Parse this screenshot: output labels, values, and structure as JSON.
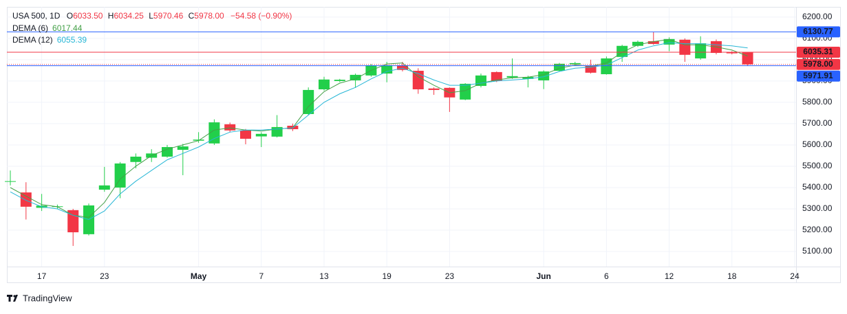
{
  "header": {
    "symbol": "USA 500, 1D",
    "open_key": "O",
    "open": "6033.50",
    "high_key": "H",
    "high": "6034.25",
    "low_key": "L",
    "low": "5970.46",
    "close_key": "C",
    "close": "5978.00",
    "change": "−54.58 (−0.90%)"
  },
  "brand": "TradingView",
  "chart_data": {
    "type": "candlestick",
    "up_color": "#22cf4a",
    "down_color": "#f23645",
    "open": [
      5430,
      5377,
      5305,
      5310,
      5294,
      5181,
      5390,
      5400,
      5520,
      5540,
      5545,
      5577,
      5620,
      5607,
      5697,
      5668,
      5640,
      5639,
      5690,
      5745,
      5861,
      5900,
      5903,
      5926,
      5935,
      5974,
      5948,
      5865,
      5868,
      5813,
      5877,
      5942,
      5916,
      5910,
      5903,
      5948,
      5978,
      5971,
      5932,
      6013,
      6065,
      6087,
      6071,
      6094,
      6006,
      6087,
      6036,
      6033.5
    ],
    "high": [
      5480,
      5425,
      5370,
      5320,
      5300,
      5325,
      5497,
      5520,
      5560,
      5580,
      5600,
      5605,
      5660,
      5720,
      5705,
      5675,
      5660,
      5740,
      5700,
      5870,
      5920,
      5910,
      5935,
      5980,
      5990,
      5990,
      5960,
      5870,
      5870,
      5890,
      5935,
      5945,
      6006,
      5925,
      5950,
      5985,
      5990,
      6000,
      6015,
      6070,
      6090,
      6129,
      6105,
      6100,
      6110,
      6095,
      6040,
      6034.25
    ],
    "low": [
      5410,
      5250,
      5290,
      5300,
      5126,
      5175,
      5380,
      5350,
      5490,
      5520,
      5540,
      5458,
      5610,
      5600,
      5660,
      5603,
      5590,
      5635,
      5665,
      5740,
      5855,
      5895,
      5868,
      5920,
      5894,
      5945,
      5840,
      5835,
      5755,
      5810,
      5870,
      5895,
      5910,
      5870,
      5862,
      5945,
      5975,
      5935,
      5930,
      5990,
      6060,
      6070,
      6040,
      5990,
      6000,
      6025,
      6025,
      5970.46
    ],
    "close": [
      5430,
      5310,
      5315,
      5312,
      5190,
      5316,
      5410,
      5513,
      5545,
      5560,
      5590,
      5593,
      5625,
      5706,
      5668,
      5629,
      5652,
      5684,
      5674,
      5858,
      5907,
      5906,
      5929,
      5974,
      5974,
      5952,
      5861,
      5858,
      5823,
      5887,
      5926,
      5900,
      5923,
      5919,
      5945,
      5981,
      5984,
      5939,
      6006,
      6065,
      6084,
      6074,
      6097,
      6023,
      6077,
      6032,
      6030,
      5978
    ],
    "series": [
      {
        "name": "DEMA (6)",
        "color": "#43a047",
        "values": [
          5400,
          5360,
          5320,
          5310,
          5270,
          5260,
          5330,
          5440,
          5500,
          5550,
          5580,
          5600,
          5620,
          5670,
          5680,
          5670,
          5665,
          5675,
          5680,
          5780,
          5850,
          5890,
          5910,
          5950,
          5980,
          5985,
          5920,
          5880,
          5845,
          5855,
          5890,
          5905,
          5915,
          5918,
          5930,
          5960,
          5975,
          5970,
          5985,
          6035,
          6070,
          6085,
          6095,
          6070,
          6070,
          6060,
          6045,
          6017.44
        ]
      },
      {
        "name": "DEMA (12)",
        "color": "#26b6d6",
        "values": [
          5380,
          5340,
          5310,
          5300,
          5270,
          5250,
          5290,
          5370,
          5430,
          5480,
          5530,
          5560,
          5590,
          5630,
          5660,
          5670,
          5670,
          5675,
          5680,
          5740,
          5800,
          5840,
          5870,
          5910,
          5945,
          5960,
          5935,
          5905,
          5880,
          5880,
          5890,
          5900,
          5905,
          5910,
          5920,
          5945,
          5960,
          5965,
          5975,
          6010,
          6045,
          6065,
          6080,
          6075,
          6075,
          6070,
          6065,
          6055.39
        ]
      }
    ],
    "price_lines": [
      {
        "value": 6130.77,
        "label": "6130.77",
        "color": "#2962ff",
        "style": "solid"
      },
      {
        "value": 6035.31,
        "label": "6035.31",
        "color": "#f23645",
        "style": "solid"
      },
      {
        "value": 5978.0,
        "label": "5978.00",
        "color": "#f23645",
        "style": "dotted"
      },
      {
        "value": 5971.91,
        "label": "5971.91",
        "color": "#2962ff",
        "style": "solid"
      }
    ],
    "xlim": [
      -0.22,
      50.09
    ],
    "xticks": [
      {
        "value": 2,
        "label": "17"
      },
      {
        "value": 6,
        "label": "23"
      },
      {
        "value": 12,
        "label": "May"
      },
      {
        "value": 16,
        "label": "7"
      },
      {
        "value": 20,
        "label": "13"
      },
      {
        "value": 24,
        "label": "19"
      },
      {
        "value": 28,
        "label": "23"
      },
      {
        "value": 34,
        "label": "Jun"
      },
      {
        "value": 38,
        "label": "6"
      },
      {
        "value": 42,
        "label": "12"
      },
      {
        "value": 46,
        "label": "18"
      },
      {
        "value": 50,
        "label": "24"
      }
    ],
    "ylim": [
      5029,
      6248
    ],
    "yticks": [
      {
        "value": 5100,
        "label": "5100.00"
      },
      {
        "value": 5200,
        "label": "5200.00"
      },
      {
        "value": 5300,
        "label": "5300.00"
      },
      {
        "value": 5400,
        "label": "5400.00"
      },
      {
        "value": 5500,
        "label": "5500.00"
      },
      {
        "value": 5600,
        "label": "5600.00"
      },
      {
        "value": 5700,
        "label": "5700.00"
      },
      {
        "value": 5800,
        "label": "5800.00"
      },
      {
        "value": 5900,
        "label": "5900.00"
      },
      {
        "value": 6000,
        "label": "6000.00"
      },
      {
        "value": 6100,
        "label": "6100.00"
      },
      {
        "value": 6200,
        "label": "6200.00"
      }
    ]
  }
}
